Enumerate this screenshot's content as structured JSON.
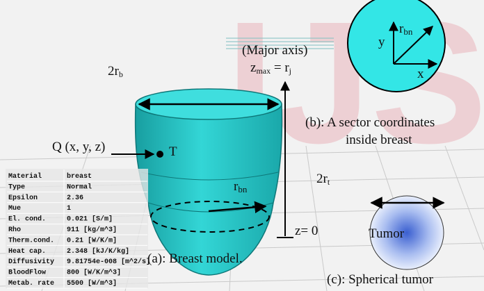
{
  "watermark": "IJS",
  "model": {
    "width_label": {
      "text": "2r",
      "sub": "b"
    },
    "axis_note": "(Major axis)",
    "zmax": {
      "z": "z",
      "sub1": "max",
      "eq": " = r",
      "sub2": "j"
    },
    "point_label": "Q (x, y, z)",
    "tumor_point": "T",
    "radius": {
      "text": "r",
      "sub": "bn"
    },
    "tumor_width": {
      "text": "2r",
      "sub": "t"
    },
    "z0": "z= 0",
    "caption": "(a): Breast model."
  },
  "sector": {
    "y": "y",
    "radius": {
      "text": "r",
      "sub": "bn"
    },
    "x": "x",
    "caption_line1": "(b): A sector coordinates",
    "caption_line2": "inside breast"
  },
  "tumor": {
    "label": "Tumor",
    "caption": "(c): Spherical tumor"
  },
  "properties": {
    "rows": [
      [
        "Material",
        "breast"
      ],
      [
        "Type",
        "Normal"
      ],
      [
        "Epsilon",
        "2.36"
      ],
      [
        "Mue",
        "1"
      ],
      [
        "El. cond.",
        "0.021 [S/m]"
      ],
      [
        "Rho",
        "911 [kg/m^3]"
      ],
      [
        "Therm.cond.",
        "0.21 [W/K/m]"
      ],
      [
        "Heat cap.",
        "2.348 [kJ/K/kg]"
      ],
      [
        "Diffusivity",
        "9.81754e-008 [m^2/s]"
      ],
      [
        "BloodFlow",
        "800 [W/K/m^3]"
      ],
      [
        "Metab. rate",
        "5500 [W/m^3]"
      ]
    ]
  }
}
